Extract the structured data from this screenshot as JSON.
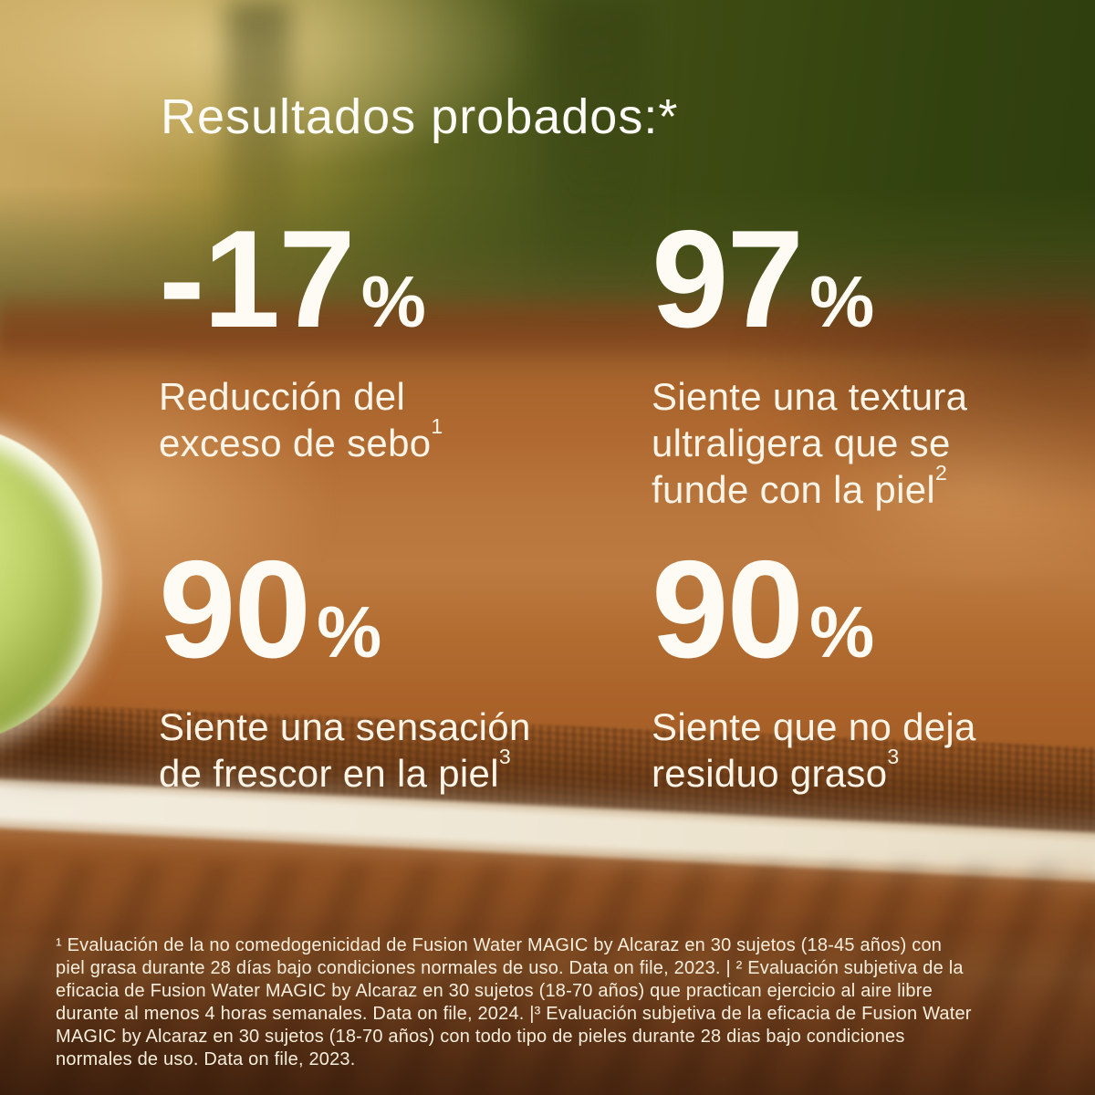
{
  "page": {
    "title": "Resultados probados:*"
  },
  "stats": [
    {
      "value": "-17",
      "unit": "%",
      "description": "Reducción del exceso de sebo",
      "reference": "1"
    },
    {
      "value": "97",
      "unit": "%",
      "description": "Siente una textura ultraligera que se funde con la piel",
      "reference": "2"
    },
    {
      "value": "90",
      "unit": "%",
      "description": "Siente una sensación de frescor en la piel",
      "reference": "3"
    },
    {
      "value": "90",
      "unit": "%",
      "description": "Siente que no deja residuo graso",
      "reference": "3"
    }
  ],
  "footnotes": {
    "lines": [
      "¹ Evaluación de la no comedogenicidad de Fusion Water MAGIC by Alcaraz en 30 sujetos (18-45 años) con",
      "piel grasa durante 28 días bajo condiciones normales de uso. Data on file, 2023. | ² Evaluación subjetiva de la",
      "eficacia de Fusion Water MAGIC by Alcaraz en 30 sujetos (18-70 años) que practican ejercicio al aire libre",
      "durante al menos 4 horas semanales. Data on file, 2024. |³ Evaluación subjetiva de la eficacia de Fusion Water",
      "MAGIC by Alcaraz en 30 sujetos (18-70 años) con todo tipo de pieles durante 28 dias bajo condiciones",
      "normales de uso. Data on file, 2023."
    ]
  },
  "colors": {
    "text_white": "#FDFBF4",
    "description_cream": "#FBF4E7",
    "footnote_cream": "#F7EEDD",
    "clay_orange": "#AD6228",
    "clay_light": "#C28249",
    "court_line_white": "#EAE0CE",
    "background_green": "#3E4C13",
    "background_gold": "#C3A45C",
    "bottom_brown": "#5E3315",
    "tennis_ball_yellow": "#BCD066"
  }
}
